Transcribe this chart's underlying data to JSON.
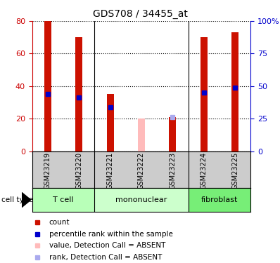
{
  "title": "GDS708 / 34455_at",
  "samples": [
    "GSM23219",
    "GSM23220",
    "GSM23221",
    "GSM23222",
    "GSM23223",
    "GSM23224",
    "GSM23225"
  ],
  "red_bar_heights": [
    80,
    70,
    35,
    0,
    21,
    70,
    73
  ],
  "pink_bar_heights": [
    0,
    0,
    0,
    20,
    0,
    0,
    0
  ],
  "blue_markers": [
    35,
    33,
    27,
    0,
    0,
    36,
    39
  ],
  "light_blue_markers": [
    0,
    0,
    0,
    0,
    21,
    0,
    0
  ],
  "absent_samples": [
    3
  ],
  "cell_groups": [
    {
      "label": "T cell",
      "start": 0,
      "end": 2,
      "color": "#b8ffb8"
    },
    {
      "label": "mononuclear",
      "start": 2,
      "end": 5,
      "color": "#ccffcc"
    },
    {
      "label": "fibroblast",
      "start": 5,
      "end": 7,
      "color": "#77ee77"
    }
  ],
  "ylim_left": [
    0,
    80
  ],
  "ylim_right": [
    0,
    100
  ],
  "yticks_left": [
    0,
    20,
    40,
    60,
    80
  ],
  "yticks_right": [
    0,
    25,
    50,
    75,
    100
  ],
  "yticklabels_right": [
    "0",
    "25",
    "50",
    "75",
    "100%"
  ],
  "left_axis_color": "#cc0000",
  "right_axis_color": "#0000cc",
  "bar_color_red": "#cc1100",
  "bar_color_pink": "#ffbbbb",
  "marker_color_blue": "#0000cc",
  "marker_color_light_blue": "#aaaaee",
  "bar_width": 0.22,
  "sample_label_fontsize": 7,
  "group_label_fontsize": 8,
  "tick_fontsize": 8,
  "title_fontsize": 10,
  "legend_fontsize": 7.5,
  "grid_color": "black",
  "xlabel_bg": "#cccccc",
  "group_dividers": [
    1.5,
    4.5
  ]
}
